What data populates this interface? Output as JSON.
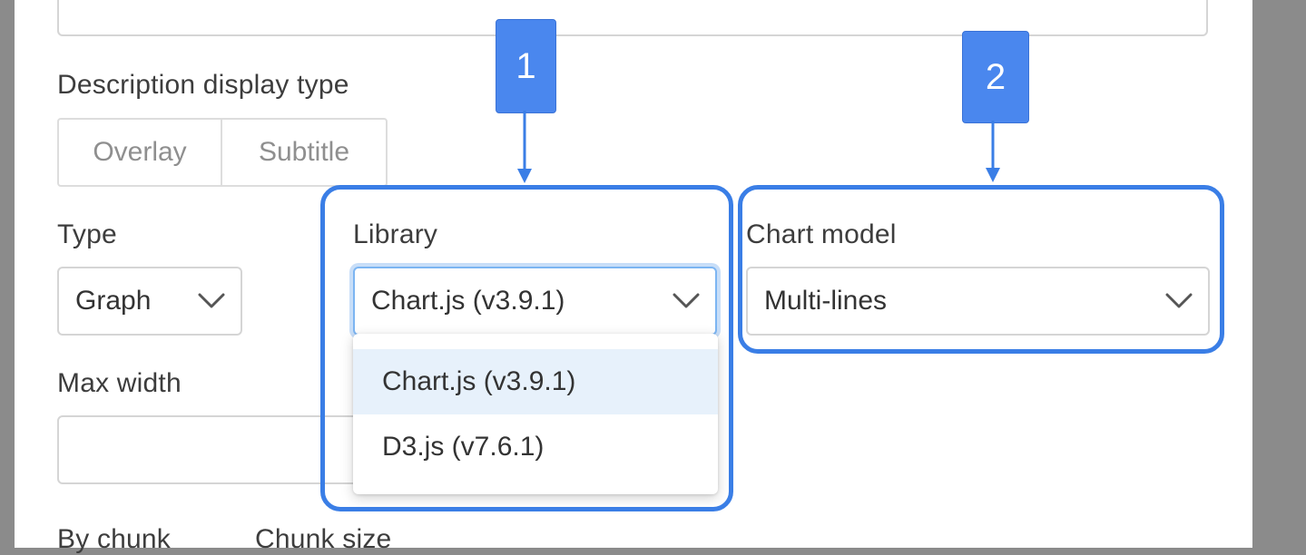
{
  "form": {
    "description_display_type": {
      "label": "Description display type",
      "options": [
        "Overlay",
        "Subtitle"
      ]
    },
    "type": {
      "label": "Type",
      "value": "Graph"
    },
    "library": {
      "label": "Library",
      "value": "Chart.js (v3.9.1)",
      "options": [
        "Chart.js (v3.9.1)",
        "D3.js (v7.6.1)"
      ],
      "highlighted_option": "Chart.js (v3.9.1)"
    },
    "chart_model": {
      "label": "Chart model",
      "value": "Multi-lines"
    },
    "max_width": {
      "label": "Max width",
      "value": ""
    },
    "by_chunk": {
      "label": "By chunk"
    },
    "chunk_size": {
      "label": "Chunk size"
    }
  },
  "annotations": {
    "badge_1": "1",
    "badge_2": "2",
    "color": "#3a7ee6"
  },
  "icons": {
    "select_arrow": "chevron-down-icon"
  },
  "colors": {
    "accent": "#4a87ee",
    "focus_ring": "#7cb5f2",
    "option_highlight": "#e7f1fb",
    "overlay": "#8b8b8b"
  }
}
